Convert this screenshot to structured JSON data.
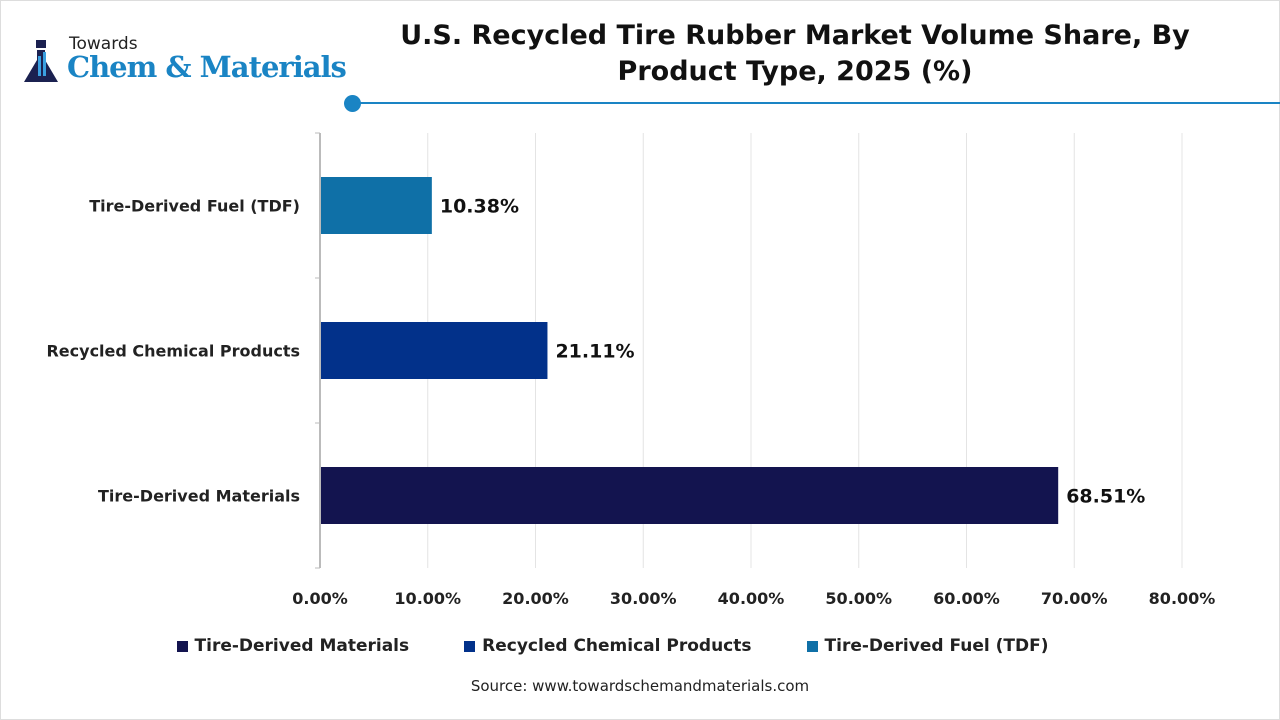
{
  "logo": {
    "top": "Towards",
    "main": "Chem & Materials"
  },
  "chart_data": {
    "type": "bar",
    "orientation": "horizontal",
    "title": "U.S. Recycled Tire Rubber Market Volume Share, By Product Type, 2025 (%)",
    "categories": [
      "Tire-Derived Fuel (TDF)",
      "Recycled Chemical Products",
      "Tire-Derived Materials"
    ],
    "values": [
      10.38,
      21.11,
      68.51
    ],
    "data_labels": [
      "10.38%",
      "21.11%",
      "68.51%"
    ],
    "colors": [
      "#0f70a7",
      "#02318a",
      "#13144f"
    ],
    "xlim": [
      0,
      80
    ],
    "x_ticks": [
      "0.00%",
      "10.00%",
      "20.00%",
      "30.00%",
      "40.00%",
      "50.00%",
      "60.00%",
      "70.00%",
      "80.00%"
    ],
    "grid": true,
    "legend_position": "bottom",
    "legend": [
      {
        "label": "Tire-Derived Materials",
        "color": "#13144f"
      },
      {
        "label": "Recycled Chemical Products",
        "color": "#02318a"
      },
      {
        "label": "Tire-Derived Fuel (TDF)",
        "color": "#0f70a7"
      }
    ]
  },
  "source": "Source: www.towardschemandmaterials.com"
}
